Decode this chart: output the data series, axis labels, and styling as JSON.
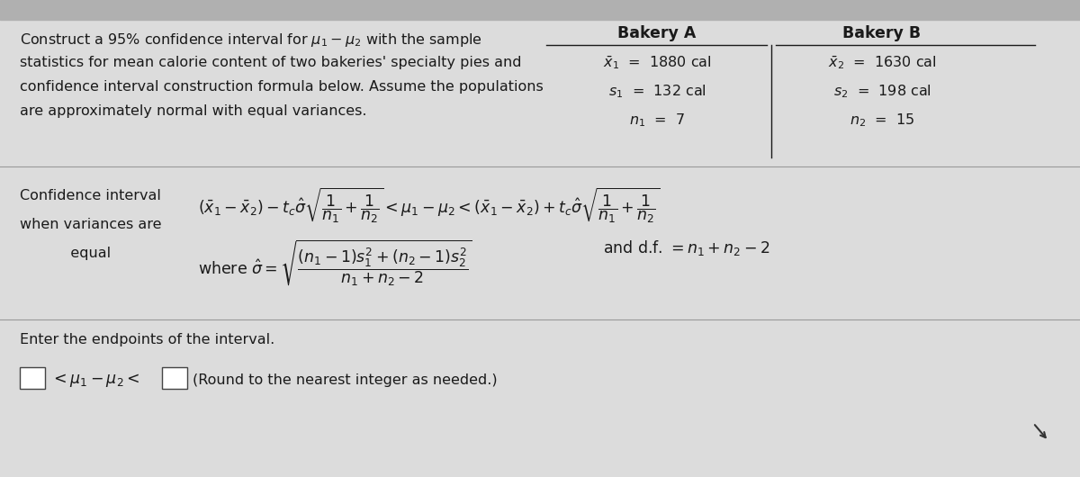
{
  "bg_color": "#dcdcdc",
  "top_bar_color": "#c8c8c8",
  "text_color": "#1a1a1a",
  "line_color": "#555555",
  "white": "#ffffff",
  "title_line1": "Construct a 95% confidence interval for $\\mu_1 - \\mu_2$ with the sample",
  "title_line2": "statistics for mean calorie content of two bakeries' specialty pies and",
  "title_line3": "confidence interval construction formula below. Assume the populations",
  "title_line4": "are approximately normal with equal variances.",
  "bakery_a_header": "Bakery A",
  "bakery_b_header": "Bakery B",
  "bakery_a_x": "$\\bar{x}_1$  =  1880 cal",
  "bakery_b_x": "$\\bar{x}_2$  =  1630 cal",
  "bakery_a_s": "$s_1$  =  132 cal",
  "bakery_b_s": "$s_2$  =  198 cal",
  "bakery_a_n": "$n_1$  =  7",
  "bakery_b_n": "$n_2$  =  15",
  "ci_left_label1": "Confidence interval",
  "ci_left_label2": "when variances are",
  "ci_left_label3": "           equal",
  "enter_text": "Enter the endpoints of the interval.",
  "round_text": "(Round to the nearest integer as needed.)",
  "font_size_body": 11.5,
  "font_size_formula": 11.5,
  "font_size_header": 12.5
}
